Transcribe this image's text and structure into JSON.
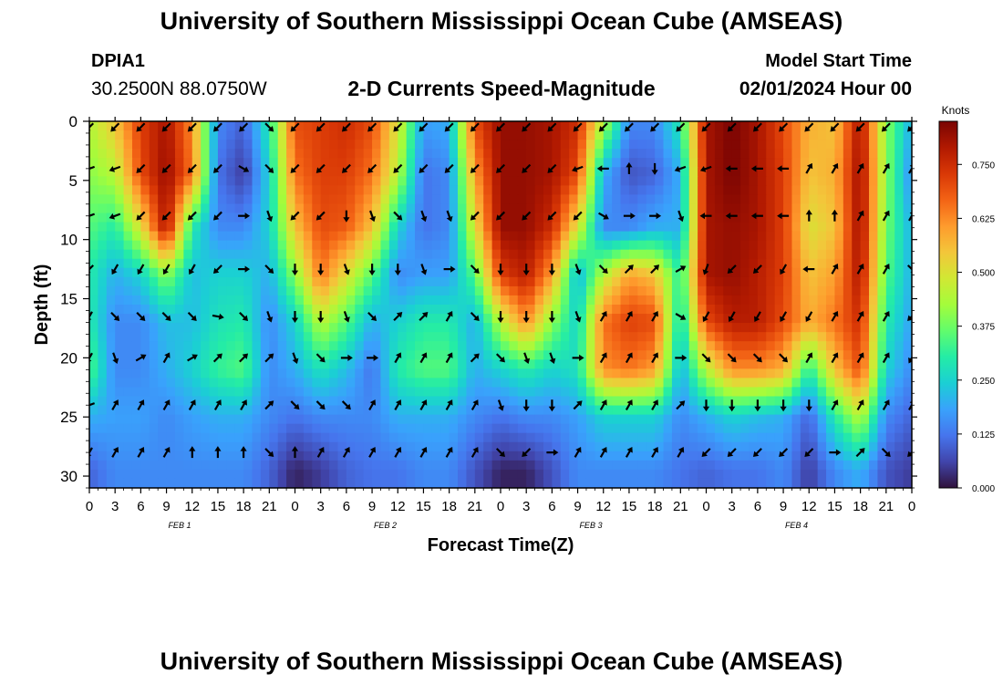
{
  "header": {
    "title": "University of Southern Mississippi Ocean Cube (AMSEAS)",
    "station_id": "DPIA1",
    "coordinates": "30.2500N  88.0750W",
    "subtitle": "2-D Currents Speed-Magnitude",
    "model_start_label": "Model Start Time",
    "model_start_value": "02/01/2024 Hour 00"
  },
  "footer": {
    "title": "University of Southern Mississippi Ocean Cube (AMSEAS)"
  },
  "colors": {
    "colormap": [
      "#30123b",
      "#4145ab",
      "#4675ed",
      "#39a2fc",
      "#1bcfd4",
      "#24eca6",
      "#61fc6c",
      "#a4fc3b",
      "#d1e834",
      "#f3c63a",
      "#fe9b2d",
      "#f36315",
      "#d93806",
      "#b11901",
      "#7a0403"
    ]
  },
  "chart_data": {
    "type": "heatmap",
    "title": "2-D Currents Speed-Magnitude",
    "xlabel": "Forecast Time(Z)",
    "ylabel": "Depth (ft)",
    "x_range_hours": [
      0,
      96
    ],
    "x_tick_step_hours": 3,
    "x_tick_labels": [
      "0",
      "3",
      "6",
      "9",
      "12",
      "15",
      "18",
      "21",
      "0",
      "3",
      "6",
      "9",
      "12",
      "15",
      "18",
      "21",
      "0",
      "3",
      "6",
      "9",
      "12",
      "15",
      "18",
      "21",
      "0",
      "3",
      "6",
      "9",
      "12",
      "15",
      "18",
      "21",
      "0"
    ],
    "date_labels": [
      {
        "label": "FEB 1",
        "hour": 10
      },
      {
        "label": "FEB 2",
        "hour": 34
      },
      {
        "label": "FEB 3",
        "hour": 58
      },
      {
        "label": "FEB 4",
        "hour": 82
      }
    ],
    "y_range_ft": [
      0,
      31
    ],
    "y_inverted": true,
    "y_ticks": [
      0,
      5,
      10,
      15,
      20,
      25,
      30
    ],
    "colorbar": {
      "unit": "Knots",
      "range": [
        0,
        0.85
      ],
      "ticks": [
        0.0,
        0.125,
        0.25,
        0.375,
        0.5,
        0.625,
        0.75
      ],
      "tick_labels": [
        "0.000",
        "0.125",
        "0.250",
        "0.375",
        "0.500",
        "0.625",
        "0.750"
      ]
    },
    "speed_field": {
      "depths_ft": [
        0,
        4.5,
        9,
        13,
        17,
        21,
        25,
        29.5
      ],
      "hours": [
        0,
        3,
        6,
        9,
        12,
        15,
        18,
        21,
        24,
        27,
        30,
        33,
        36,
        39,
        42,
        45,
        48,
        51,
        54,
        57,
        60,
        63,
        66,
        69,
        72,
        75,
        78,
        81,
        84,
        87,
        90,
        93,
        96
      ],
      "values_knots": [
        [
          0.45,
          0.55,
          0.72,
          0.8,
          0.62,
          0.15,
          0.1,
          0.3,
          0.7,
          0.72,
          0.75,
          0.7,
          0.5,
          0.18,
          0.2,
          0.7,
          0.82,
          0.82,
          0.8,
          0.75,
          0.45,
          0.15,
          0.15,
          0.3,
          0.8,
          0.85,
          0.8,
          0.7,
          0.58,
          0.55,
          0.8,
          0.4,
          0.2
        ],
        [
          0.4,
          0.45,
          0.7,
          0.82,
          0.65,
          0.12,
          0.05,
          0.25,
          0.65,
          0.72,
          0.72,
          0.65,
          0.45,
          0.12,
          0.15,
          0.6,
          0.82,
          0.82,
          0.8,
          0.7,
          0.2,
          0.08,
          0.1,
          0.2,
          0.8,
          0.85,
          0.8,
          0.72,
          0.55,
          0.58,
          0.82,
          0.4,
          0.15
        ],
        [
          0.35,
          0.3,
          0.5,
          0.8,
          0.3,
          0.15,
          0.15,
          0.25,
          0.55,
          0.7,
          0.68,
          0.55,
          0.25,
          0.12,
          0.15,
          0.5,
          0.82,
          0.82,
          0.75,
          0.5,
          0.15,
          0.15,
          0.2,
          0.2,
          0.8,
          0.82,
          0.8,
          0.72,
          0.5,
          0.55,
          0.82,
          0.38,
          0.2
        ],
        [
          0.3,
          0.2,
          0.25,
          0.4,
          0.22,
          0.25,
          0.25,
          0.2,
          0.4,
          0.65,
          0.5,
          0.35,
          0.15,
          0.18,
          0.18,
          0.35,
          0.72,
          0.78,
          0.6,
          0.2,
          0.45,
          0.6,
          0.55,
          0.3,
          0.8,
          0.82,
          0.78,
          0.72,
          0.55,
          0.6,
          0.8,
          0.35,
          0.2
        ],
        [
          0.3,
          0.15,
          0.15,
          0.22,
          0.22,
          0.28,
          0.3,
          0.15,
          0.25,
          0.45,
          0.35,
          0.2,
          0.25,
          0.3,
          0.3,
          0.2,
          0.45,
          0.62,
          0.4,
          0.25,
          0.65,
          0.72,
          0.7,
          0.25,
          0.7,
          0.78,
          0.78,
          0.7,
          0.58,
          0.65,
          0.75,
          0.3,
          0.18
        ],
        [
          0.35,
          0.15,
          0.15,
          0.2,
          0.25,
          0.32,
          0.35,
          0.15,
          0.2,
          0.28,
          0.22,
          0.12,
          0.3,
          0.35,
          0.35,
          0.2,
          0.25,
          0.3,
          0.25,
          0.28,
          0.62,
          0.65,
          0.6,
          0.2,
          0.45,
          0.62,
          0.62,
          0.58,
          0.3,
          0.55,
          0.7,
          0.25,
          0.15
        ],
        [
          0.2,
          0.18,
          0.18,
          0.15,
          0.18,
          0.2,
          0.2,
          0.15,
          0.12,
          0.15,
          0.15,
          0.15,
          0.2,
          0.2,
          0.2,
          0.15,
          0.12,
          0.15,
          0.15,
          0.18,
          0.25,
          0.25,
          0.25,
          0.15,
          0.2,
          0.25,
          0.22,
          0.2,
          0.1,
          0.3,
          0.45,
          0.15,
          0.1
        ],
        [
          0.1,
          0.15,
          0.15,
          0.15,
          0.15,
          0.15,
          0.15,
          0.1,
          0.02,
          0.05,
          0.1,
          0.12,
          0.12,
          0.15,
          0.15,
          0.08,
          0.02,
          0.02,
          0.08,
          0.15,
          0.15,
          0.15,
          0.15,
          0.12,
          0.1,
          0.12,
          0.12,
          0.15,
          0.05,
          0.15,
          0.2,
          0.08,
          0.05
        ]
      ]
    },
    "arrow_field": {
      "depths_ft": [
        0.5,
        4,
        8,
        12.5,
        16.5,
        20,
        24,
        28
      ],
      "hours": [
        0,
        3,
        6,
        9,
        12,
        15,
        18,
        21,
        24,
        27,
        30,
        33,
        36,
        39,
        42,
        45,
        48,
        51,
        54,
        57,
        60,
        63,
        66,
        69,
        72,
        75,
        78,
        81,
        84,
        87,
        90,
        93,
        96
      ],
      "direction_deg_from_north": [
        [
          225,
          225,
          225,
          225,
          225,
          225,
          225,
          135,
          225,
          225,
          225,
          225,
          225,
          225,
          225,
          225,
          225,
          225,
          225,
          225,
          225,
          225,
          225,
          225,
          225,
          225,
          225,
          225,
          225,
          225,
          225,
          225,
          225
        ],
        [
          250,
          250,
          225,
          225,
          225,
          225,
          120,
          135,
          225,
          225,
          225,
          225,
          225,
          225,
          225,
          225,
          225,
          225,
          225,
          250,
          270,
          0,
          180,
          250,
          250,
          270,
          270,
          270,
          30,
          30,
          30,
          30,
          30
        ],
        [
          250,
          250,
          225,
          225,
          225,
          225,
          90,
          160,
          225,
          225,
          180,
          160,
          135,
          160,
          160,
          225,
          225,
          225,
          225,
          225,
          120,
          90,
          90,
          160,
          270,
          270,
          270,
          270,
          0,
          0,
          30,
          30,
          30
        ],
        [
          225,
          210,
          210,
          210,
          210,
          225,
          90,
          135,
          180,
          180,
          160,
          180,
          180,
          160,
          90,
          135,
          180,
          180,
          180,
          160,
          135,
          45,
          45,
          60,
          200,
          225,
          225,
          210,
          270,
          30,
          30,
          30,
          135
        ],
        [
          210,
          135,
          135,
          135,
          135,
          100,
          135,
          160,
          180,
          180,
          160,
          135,
          45,
          45,
          30,
          135,
          180,
          180,
          180,
          160,
          30,
          30,
          30,
          120,
          210,
          210,
          210,
          210,
          210,
          30,
          30,
          30,
          225
        ],
        [
          210,
          160,
          60,
          30,
          60,
          45,
          45,
          45,
          160,
          135,
          90,
          90,
          30,
          30,
          30,
          45,
          135,
          160,
          160,
          90,
          30,
          30,
          30,
          90,
          135,
          135,
          135,
          135,
          30,
          30,
          30,
          30,
          210
        ],
        [
          250,
          30,
          30,
          30,
          30,
          30,
          30,
          45,
          135,
          135,
          135,
          30,
          30,
          30,
          30,
          30,
          160,
          180,
          180,
          45,
          30,
          30,
          30,
          45,
          180,
          180,
          180,
          180,
          180,
          30,
          30,
          30,
          30
        ],
        [
          210,
          30,
          30,
          30,
          0,
          0,
          0,
          135,
          0,
          30,
          30,
          30,
          30,
          30,
          30,
          30,
          135,
          225,
          90,
          30,
          30,
          30,
          30,
          30,
          225,
          225,
          225,
          225,
          225,
          90,
          45,
          135,
          225
        ]
      ]
    }
  }
}
